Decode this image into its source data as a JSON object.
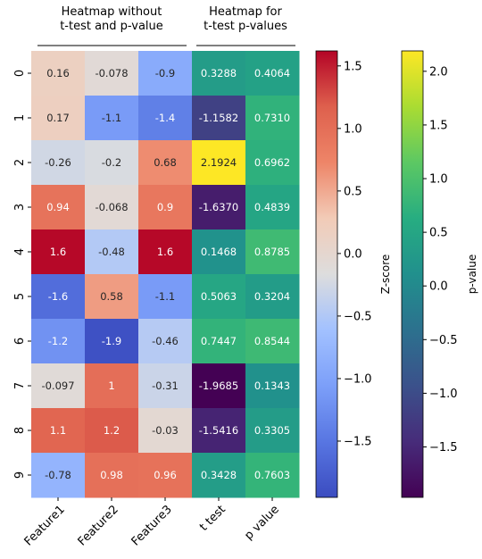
{
  "chart_data": {
    "type": "heatmap",
    "group_titles": [
      {
        "line1": "Heatmap without",
        "line2": "t-test and p-value"
      },
      {
        "line1": "Heatmap for",
        "line2": "t-test p-values"
      }
    ],
    "columns": [
      "Feature1",
      "Feature2",
      "Feature3",
      "t test",
      "p value"
    ],
    "rows": [
      "0",
      "1",
      "2",
      "3",
      "4",
      "5",
      "6",
      "7",
      "8",
      "9"
    ],
    "zscore_values": [
      [
        0.16,
        -0.078,
        -0.9
      ],
      [
        0.17,
        -1.1,
        -1.4
      ],
      [
        -0.26,
        -0.2,
        0.68
      ],
      [
        0.94,
        -0.068,
        0.9
      ],
      [
        1.6,
        -0.48,
        1.6
      ],
      [
        -1.6,
        0.58,
        -1.1
      ],
      [
        -1.2,
        -1.9,
        -0.46
      ],
      [
        -0.097,
        1.0,
        -0.31
      ],
      [
        1.1,
        1.2,
        -0.03
      ],
      [
        -0.78,
        0.98,
        0.96
      ]
    ],
    "zscore_labels": [
      [
        "0.16",
        "-0.078",
        "-0.9"
      ],
      [
        "0.17",
        "-1.1",
        "-1.4"
      ],
      [
        "-0.26",
        "-0.2",
        "0.68"
      ],
      [
        "0.94",
        "-0.068",
        "0.9"
      ],
      [
        "1.6",
        "-0.48",
        "1.6"
      ],
      [
        "-1.6",
        "0.58",
        "-1.1"
      ],
      [
        "-1.2",
        "-1.9",
        "-0.46"
      ],
      [
        "-0.097",
        "1",
        "-0.31"
      ],
      [
        "1.1",
        "1.2",
        "-0.03"
      ],
      [
        "-0.78",
        "0.98",
        "0.96"
      ]
    ],
    "ttest_values": [
      [
        0.3288,
        0.4064
      ],
      [
        -1.1582,
        0.731
      ],
      [
        2.1924,
        0.6962
      ],
      [
        -1.637,
        0.4839
      ],
      [
        0.1468,
        0.8785
      ],
      [
        0.5063,
        0.3204
      ],
      [
        0.7447,
        0.8544
      ],
      [
        -1.9685,
        0.1343
      ],
      [
        -1.5416,
        0.3305
      ],
      [
        0.3428,
        0.7603
      ]
    ],
    "ttest_labels": [
      [
        "0.3288",
        "0.4064"
      ],
      [
        "-1.1582",
        "0.7310"
      ],
      [
        "2.1924",
        "0.6962"
      ],
      [
        "-1.6370",
        "0.4839"
      ],
      [
        "0.1468",
        "0.8785"
      ],
      [
        "0.5063",
        "0.3204"
      ],
      [
        "0.7447",
        "0.8544"
      ],
      [
        "-1.9685",
        "0.1343"
      ],
      [
        "-1.5416",
        "0.3305"
      ],
      [
        "0.3428",
        "0.7603"
      ]
    ],
    "colorbars": [
      {
        "label": "Z-score",
        "colormap": "coolwarm",
        "vmin": -1.95,
        "vmax": 1.62,
        "ticks": [
          1.5,
          1.0,
          0.5,
          0.0,
          -0.5,
          -1.0,
          -1.5
        ],
        "tick_labels": [
          "1.5",
          "1.0",
          "0.5",
          "0.0",
          "−0.5",
          "−1.0",
          "−1.5"
        ]
      },
      {
        "label": "p-value",
        "colormap": "viridis",
        "vmin": -1.97,
        "vmax": 2.19,
        "ticks": [
          2.0,
          1.5,
          1.0,
          0.5,
          0.0,
          -0.5,
          -1.0,
          -1.5
        ],
        "tick_labels": [
          "2.0",
          "1.5",
          "1.0",
          "0.5",
          "0.0",
          "−0.5",
          "−1.0",
          "−1.5"
        ]
      }
    ]
  }
}
